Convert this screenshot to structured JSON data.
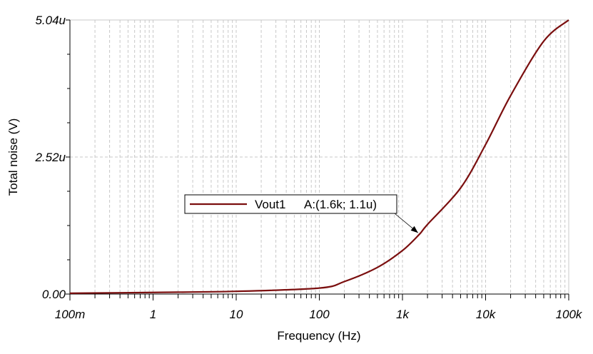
{
  "chart_data": {
    "type": "line",
    "title": "",
    "xlabel": "Frequency (Hz)",
    "ylabel": "Total noise (V)",
    "xscale": "log",
    "xlim": [
      0.1,
      100000
    ],
    "ylim": [
      0,
      5.04e-06
    ],
    "grid": true,
    "x_tick_values": [
      0.1,
      1,
      10,
      100,
      1000,
      10000,
      100000
    ],
    "x_tick_labels": [
      "100m",
      "1",
      "10",
      "100",
      "1k",
      "10k",
      "100k"
    ],
    "y_tick_values": [
      0,
      2.52e-06,
      5.04e-06
    ],
    "y_tick_labels": [
      "0.00",
      "2.52u",
      "5.04u"
    ],
    "series": [
      {
        "name": "Vout1",
        "color": "#7b0f0f",
        "x": [
          0.1,
          1,
          10,
          100,
          200,
          500,
          1000,
          1600,
          2000,
          5000,
          10000,
          20000,
          50000,
          100000
        ],
        "y": [
          1.5e-08,
          3e-08,
          5e-08,
          1.1e-07,
          2.3e-07,
          4.9e-07,
          8e-07,
          1.1e-06,
          1.28e-06,
          1.95e-06,
          2.75e-06,
          3.65e-06,
          4.65e-06,
          5.04e-06
        ]
      }
    ],
    "legend": {
      "label": "Vout1",
      "annotation": "A:(1.6k; 1.1u)",
      "position": "center-left"
    },
    "marker": {
      "name": "A",
      "x": 1600,
      "y": 1.1e-06
    }
  }
}
